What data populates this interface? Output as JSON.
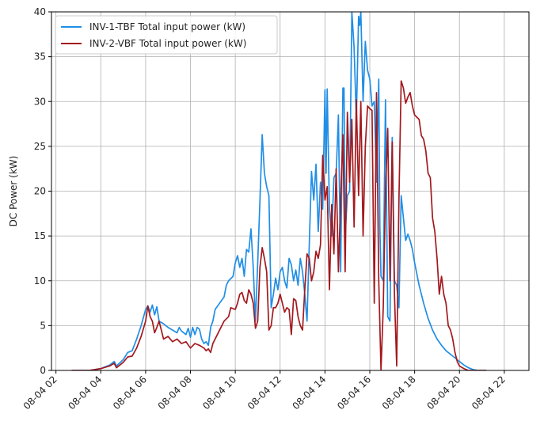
{
  "chart_data": {
    "type": "line",
    "title": "",
    "xlabel": "",
    "ylabel": "DC Power (kW)",
    "ylim": [
      0,
      40
    ],
    "xlim": [
      1.8,
      23.1
    ],
    "grid": true,
    "legend_position": "top-left",
    "y_ticks": [
      0,
      5,
      10,
      15,
      20,
      25,
      30,
      35,
      40
    ],
    "x_ticks": [
      {
        "hour": 2,
        "label": "08-04 02"
      },
      {
        "hour": 4,
        "label": "08-04 04"
      },
      {
        "hour": 6,
        "label": "08-04 06"
      },
      {
        "hour": 8,
        "label": "08-04 08"
      },
      {
        "hour": 10,
        "label": "08-04 10"
      },
      {
        "hour": 12,
        "label": "08-04 12"
      },
      {
        "hour": 14,
        "label": "08-04 14"
      },
      {
        "hour": 16,
        "label": "08-04 16"
      },
      {
        "hour": 18,
        "label": "08-04 18"
      },
      {
        "hour": 20,
        "label": "08-04 20"
      },
      {
        "hour": 22,
        "label": "08-04 22"
      }
    ],
    "series": [
      {
        "name": "INV-1-TBF Total input power (kW)",
        "color": "#1f8ee6",
        "points": [
          [
            2.7,
            0
          ],
          [
            3.5,
            0
          ],
          [
            4.0,
            0.2
          ],
          [
            4.4,
            0.6
          ],
          [
            4.6,
            1.0
          ],
          [
            4.7,
            0.5
          ],
          [
            5.0,
            1.2
          ],
          [
            5.2,
            2.0
          ],
          [
            5.4,
            2.2
          ],
          [
            5.6,
            3.5
          ],
          [
            5.8,
            5.0
          ],
          [
            6.0,
            6.8
          ],
          [
            6.1,
            7.2
          ],
          [
            6.2,
            6.5
          ],
          [
            6.3,
            7.3
          ],
          [
            6.4,
            6.2
          ],
          [
            6.5,
            7.1
          ],
          [
            6.6,
            5.5
          ],
          [
            6.8,
            5.2
          ],
          [
            7.0,
            4.8
          ],
          [
            7.2,
            4.5
          ],
          [
            7.4,
            4.2
          ],
          [
            7.5,
            4.8
          ],
          [
            7.6,
            4.4
          ],
          [
            7.8,
            4.0
          ],
          [
            7.9,
            4.7
          ],
          [
            8.0,
            3.7
          ],
          [
            8.1,
            4.8
          ],
          [
            8.2,
            4.0
          ],
          [
            8.3,
            4.8
          ],
          [
            8.4,
            4.6
          ],
          [
            8.5,
            3.5
          ],
          [
            8.6,
            3.0
          ],
          [
            8.7,
            3.2
          ],
          [
            8.8,
            2.8
          ],
          [
            8.9,
            4.8
          ],
          [
            9.0,
            5.5
          ],
          [
            9.1,
            6.8
          ],
          [
            9.3,
            7.5
          ],
          [
            9.5,
            8.2
          ],
          [
            9.6,
            9.5
          ],
          [
            9.7,
            10.0
          ],
          [
            9.9,
            10.5
          ],
          [
            10.0,
            12.0
          ],
          [
            10.1,
            12.8
          ],
          [
            10.2,
            11.5
          ],
          [
            10.3,
            12.5
          ],
          [
            10.4,
            10.5
          ],
          [
            10.5,
            13.5
          ],
          [
            10.6,
            13.2
          ],
          [
            10.7,
            15.8
          ],
          [
            10.8,
            11.5
          ],
          [
            10.9,
            5.5
          ],
          [
            11.0,
            12.0
          ],
          [
            11.1,
            19.0
          ],
          [
            11.2,
            26.3
          ],
          [
            11.3,
            22.0
          ],
          [
            11.4,
            20.5
          ],
          [
            11.5,
            19.5
          ],
          [
            11.6,
            7.0
          ],
          [
            11.7,
            8.5
          ],
          [
            11.8,
            10.3
          ],
          [
            11.9,
            9.0
          ],
          [
            12.0,
            11.0
          ],
          [
            12.1,
            11.5
          ],
          [
            12.2,
            10.0
          ],
          [
            12.3,
            9.2
          ],
          [
            12.4,
            12.5
          ],
          [
            12.5,
            11.8
          ],
          [
            12.6,
            10.0
          ],
          [
            12.7,
            11.2
          ],
          [
            12.8,
            9.5
          ],
          [
            12.9,
            12.5
          ],
          [
            13.0,
            11.0
          ],
          [
            13.1,
            8.5
          ],
          [
            13.2,
            5.5
          ],
          [
            13.3,
            14.0
          ],
          [
            13.4,
            22.2
          ],
          [
            13.5,
            19.0
          ],
          [
            13.6,
            23.0
          ],
          [
            13.7,
            15.5
          ],
          [
            13.8,
            21.0
          ],
          [
            13.9,
            18.0
          ],
          [
            14.0,
            31.3
          ],
          [
            14.05,
            22.0
          ],
          [
            14.1,
            31.4
          ],
          [
            14.2,
            18.0
          ],
          [
            14.3,
            15.0
          ],
          [
            14.4,
            21.5
          ],
          [
            14.5,
            22.0
          ],
          [
            14.6,
            28.5
          ],
          [
            14.7,
            11.0
          ],
          [
            14.8,
            31.5
          ],
          [
            14.85,
            31.5
          ],
          [
            14.9,
            15.0
          ],
          [
            15.0,
            19.5
          ],
          [
            15.1,
            20.0
          ],
          [
            15.2,
            40.0
          ],
          [
            15.3,
            36.0
          ],
          [
            15.4,
            28.0
          ],
          [
            15.5,
            39.5
          ],
          [
            15.55,
            38.5
          ],
          [
            15.6,
            40.0
          ],
          [
            15.7,
            30.0
          ],
          [
            15.8,
            36.7
          ],
          [
            15.9,
            33.5
          ],
          [
            16.0,
            32.5
          ],
          [
            16.1,
            29.5
          ],
          [
            16.2,
            30.0
          ],
          [
            16.3,
            21.0
          ],
          [
            16.4,
            32.5
          ],
          [
            16.45,
            16.0
          ],
          [
            16.5,
            10.5
          ],
          [
            16.6,
            10.0
          ],
          [
            16.7,
            30.2
          ],
          [
            16.8,
            6.0
          ],
          [
            16.9,
            5.5
          ],
          [
            17.0,
            26.0
          ],
          [
            17.1,
            10.0
          ],
          [
            17.2,
            9.5
          ],
          [
            17.3,
            7.0
          ],
          [
            17.4,
            19.5
          ],
          [
            17.5,
            17.0
          ],
          [
            17.6,
            14.5
          ],
          [
            17.7,
            15.2
          ],
          [
            17.8,
            14.5
          ],
          [
            17.9,
            13.5
          ],
          [
            18.0,
            12.0
          ],
          [
            18.2,
            9.5
          ],
          [
            18.4,
            7.5
          ],
          [
            18.6,
            5.8
          ],
          [
            18.8,
            4.5
          ],
          [
            19.0,
            3.5
          ],
          [
            19.2,
            2.8
          ],
          [
            19.4,
            2.2
          ],
          [
            19.6,
            1.8
          ],
          [
            19.8,
            1.4
          ],
          [
            20.0,
            1.0
          ],
          [
            20.2,
            0.6
          ],
          [
            20.4,
            0.3
          ],
          [
            20.6,
            0.1
          ],
          [
            20.8,
            0
          ],
          [
            21.2,
            0
          ]
        ]
      },
      {
        "name": "INV-2-VBF Total input power (kW)",
        "color": "#a3191e",
        "points": [
          [
            2.7,
            0
          ],
          [
            3.5,
            0
          ],
          [
            4.0,
            0.2
          ],
          [
            4.4,
            0.5
          ],
          [
            4.6,
            0.8
          ],
          [
            4.7,
            0.3
          ],
          [
            5.0,
            0.9
          ],
          [
            5.2,
            1.5
          ],
          [
            5.4,
            1.6
          ],
          [
            5.6,
            2.5
          ],
          [
            5.8,
            3.8
          ],
          [
            6.0,
            5.5
          ],
          [
            6.1,
            7.2
          ],
          [
            6.2,
            6.0
          ],
          [
            6.3,
            5.5
          ],
          [
            6.4,
            4.2
          ],
          [
            6.5,
            4.8
          ],
          [
            6.6,
            5.5
          ],
          [
            6.8,
            3.5
          ],
          [
            7.0,
            3.8
          ],
          [
            7.2,
            3.2
          ],
          [
            7.4,
            3.5
          ],
          [
            7.6,
            3.0
          ],
          [
            7.8,
            3.2
          ],
          [
            8.0,
            2.5
          ],
          [
            8.2,
            3.0
          ],
          [
            8.4,
            2.8
          ],
          [
            8.6,
            2.5
          ],
          [
            8.7,
            2.2
          ],
          [
            8.8,
            2.4
          ],
          [
            8.9,
            2.0
          ],
          [
            9.0,
            3.0
          ],
          [
            9.1,
            3.5
          ],
          [
            9.3,
            4.5
          ],
          [
            9.5,
            5.5
          ],
          [
            9.7,
            6.0
          ],
          [
            9.8,
            7.0
          ],
          [
            10.0,
            6.8
          ],
          [
            10.1,
            7.5
          ],
          [
            10.2,
            8.5
          ],
          [
            10.3,
            8.7
          ],
          [
            10.4,
            7.8
          ],
          [
            10.5,
            7.5
          ],
          [
            10.6,
            9.0
          ],
          [
            10.7,
            8.5
          ],
          [
            10.8,
            7.5
          ],
          [
            10.9,
            4.7
          ],
          [
            11.0,
            5.5
          ],
          [
            11.1,
            11.5
          ],
          [
            11.2,
            13.7
          ],
          [
            11.3,
            12.5
          ],
          [
            11.4,
            11.0
          ],
          [
            11.5,
            4.5
          ],
          [
            11.6,
            5.0
          ],
          [
            11.7,
            7.0
          ],
          [
            11.8,
            7.0
          ],
          [
            11.9,
            7.5
          ],
          [
            12.0,
            8.5
          ],
          [
            12.1,
            7.5
          ],
          [
            12.2,
            6.5
          ],
          [
            12.3,
            7.0
          ],
          [
            12.4,
            6.8
          ],
          [
            12.5,
            4.0
          ],
          [
            12.6,
            8.0
          ],
          [
            12.7,
            7.8
          ],
          [
            12.8,
            6.0
          ],
          [
            12.9,
            5.0
          ],
          [
            13.0,
            4.5
          ],
          [
            13.1,
            9.0
          ],
          [
            13.2,
            13.0
          ],
          [
            13.3,
            12.5
          ],
          [
            13.4,
            10.0
          ],
          [
            13.5,
            11.0
          ],
          [
            13.6,
            13.3
          ],
          [
            13.7,
            12.5
          ],
          [
            13.8,
            14.0
          ],
          [
            13.9,
            24.0
          ],
          [
            14.0,
            19.0
          ],
          [
            14.1,
            20.5
          ],
          [
            14.2,
            9.0
          ],
          [
            14.3,
            18.5
          ],
          [
            14.4,
            13.0
          ],
          [
            14.5,
            22.5
          ],
          [
            14.6,
            11.0
          ],
          [
            14.7,
            19.0
          ],
          [
            14.8,
            26.3
          ],
          [
            14.9,
            11.0
          ],
          [
            15.0,
            28.8
          ],
          [
            15.1,
            21.0
          ],
          [
            15.2,
            28.0
          ],
          [
            15.3,
            16.0
          ],
          [
            15.4,
            30.2
          ],
          [
            15.5,
            19.5
          ],
          [
            15.6,
            30.0
          ],
          [
            15.7,
            15.0
          ],
          [
            15.8,
            25.0
          ],
          [
            15.9,
            29.5
          ],
          [
            16.0,
            29.2
          ],
          [
            16.1,
            29.0
          ],
          [
            16.2,
            7.5
          ],
          [
            16.3,
            31.0
          ],
          [
            16.4,
            10.0
          ],
          [
            16.5,
            0
          ],
          [
            16.6,
            7.0
          ],
          [
            16.7,
            20.0
          ],
          [
            16.8,
            27.0
          ],
          [
            16.9,
            10.0
          ],
          [
            17.0,
            25.5
          ],
          [
            17.1,
            8.5
          ],
          [
            17.2,
            0.5
          ],
          [
            17.3,
            19.0
          ],
          [
            17.4,
            32.3
          ],
          [
            17.5,
            31.5
          ],
          [
            17.6,
            29.8
          ],
          [
            17.7,
            30.5
          ],
          [
            17.8,
            31.0
          ],
          [
            17.9,
            29.5
          ],
          [
            18.0,
            28.5
          ],
          [
            18.2,
            28.0
          ],
          [
            18.3,
            26.2
          ],
          [
            18.4,
            25.8
          ],
          [
            18.5,
            24.5
          ],
          [
            18.6,
            22.0
          ],
          [
            18.7,
            21.5
          ],
          [
            18.8,
            17.0
          ],
          [
            18.9,
            15.5
          ],
          [
            19.0,
            12.5
          ],
          [
            19.1,
            8.5
          ],
          [
            19.2,
            10.5
          ],
          [
            19.3,
            8.5
          ],
          [
            19.4,
            7.5
          ],
          [
            19.5,
            5.0
          ],
          [
            19.6,
            4.5
          ],
          [
            19.7,
            3.5
          ],
          [
            19.8,
            2.0
          ],
          [
            19.9,
            1.0
          ],
          [
            20.0,
            0.5
          ],
          [
            20.2,
            0.2
          ],
          [
            20.4,
            0
          ],
          [
            21.2,
            0
          ]
        ]
      }
    ]
  }
}
